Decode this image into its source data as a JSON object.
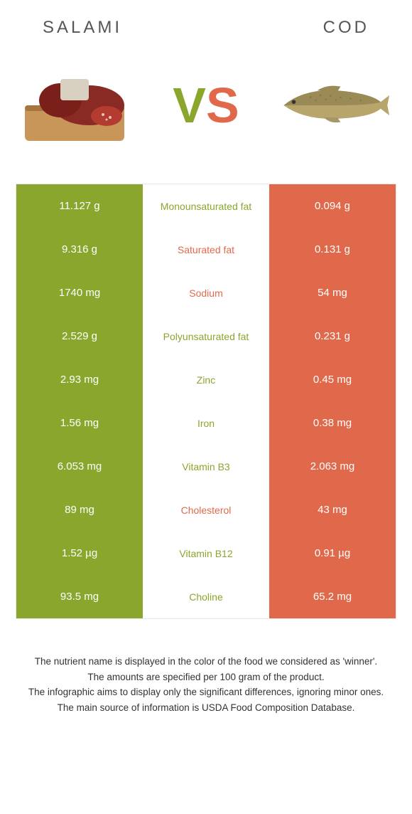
{
  "header": {
    "left": "SALAMI",
    "right": "COD"
  },
  "vs": {
    "v": "V",
    "s": "S"
  },
  "colors": {
    "green": "#8aa62c",
    "orange": "#e1694b",
    "bg": "#ffffff",
    "text": "#333333"
  },
  "table": {
    "type": "comparison-table",
    "left_color": "#8aa62c",
    "right_color": "#e1694b",
    "rows": [
      {
        "left": "11.127 g",
        "label": "Monounsaturated fat",
        "right": "0.094 g",
        "winner": "left"
      },
      {
        "left": "9.316 g",
        "label": "Saturated fat",
        "right": "0.131 g",
        "winner": "right"
      },
      {
        "left": "1740 mg",
        "label": "Sodium",
        "right": "54 mg",
        "winner": "right"
      },
      {
        "left": "2.529 g",
        "label": "Polyunsaturated fat",
        "right": "0.231 g",
        "winner": "left"
      },
      {
        "left": "2.93 mg",
        "label": "Zinc",
        "right": "0.45 mg",
        "winner": "left"
      },
      {
        "left": "1.56 mg",
        "label": "Iron",
        "right": "0.38 mg",
        "winner": "left"
      },
      {
        "left": "6.053 mg",
        "label": "Vitamin B3",
        "right": "2.063 mg",
        "winner": "left"
      },
      {
        "left": "89 mg",
        "label": "Cholesterol",
        "right": "43 mg",
        "winner": "right"
      },
      {
        "left": "1.52 µg",
        "label": "Vitamin B12",
        "right": "0.91 µg",
        "winner": "left"
      },
      {
        "left": "93.5 mg",
        "label": "Choline",
        "right": "65.2 mg",
        "winner": "left"
      }
    ]
  },
  "footer": {
    "line1": "The nutrient name is displayed in the color of the food we considered as 'winner'.",
    "line2": "The amounts are specified per 100 gram of the product.",
    "line3": "The infographic aims to display only the significant differences, ignoring minor ones.",
    "line4": "The main source of information is USDA Food Composition Database."
  }
}
